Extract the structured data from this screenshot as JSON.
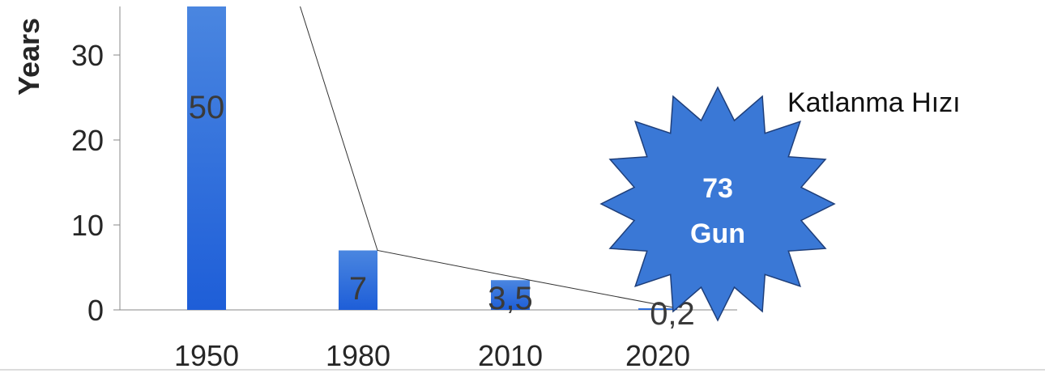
{
  "chart_data": {
    "type": "bar",
    "ylabel": "Years",
    "categories": [
      "1950",
      "1980",
      "2010",
      "2020"
    ],
    "values": [
      50,
      7,
      3.5,
      0.2
    ],
    "value_labels": [
      "50",
      "7",
      "3,5",
      "0,2"
    ],
    "ylim": [
      0,
      35
    ],
    "yticks": [
      0,
      10,
      20,
      30
    ],
    "grid": false,
    "trend_line": true,
    "colors": {
      "bar_top": "#4a86e0",
      "bar_bottom": "#1e5ed8",
      "line": "#333333",
      "axis": "#888888"
    }
  },
  "callout": {
    "text": "Katlanma  Hızı",
    "badge_line1": "73",
    "badge_line2": "Gun",
    "badge_color": "#3a78d6"
  }
}
